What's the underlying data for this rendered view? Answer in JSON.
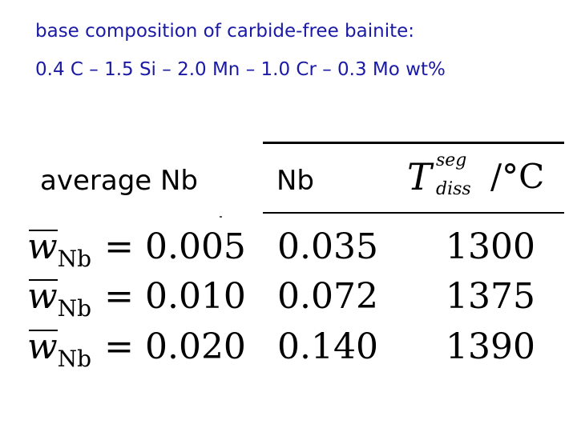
{
  "heading": {
    "line1": "base composition of carbide-free bainite:",
    "line2": "0.4 C – 1.5 Si – 2.0 Mn – 1.0 Cr – 0.3 Mo wt%"
  },
  "table": {
    "row_header": "average Nb",
    "col_nb": "Nb",
    "col_t": {
      "symbol": "T",
      "superscript": "seg",
      "subscript": "diss",
      "unit": "/°C"
    },
    "lhs_symbol": "w",
    "lhs_subscript": "Nb",
    "rows": [
      {
        "eq": "= 0.005",
        "nb": "0.035",
        "t": "1300"
      },
      {
        "eq": "= 0.010",
        "nb": "0.072",
        "t": "1375"
      },
      {
        "eq": "= 0.020",
        "nb": "0.140",
        "t": "1390"
      }
    ]
  }
}
